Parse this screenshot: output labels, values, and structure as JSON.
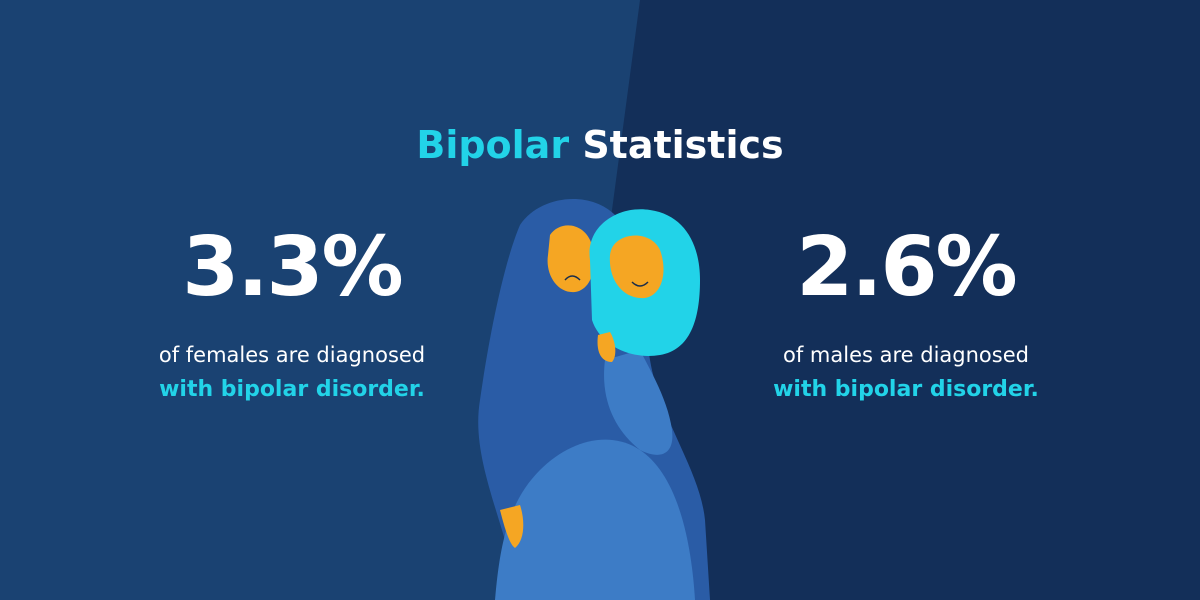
{
  "title": {
    "highlight": "Bipolar",
    "rest": "Statistics"
  },
  "stats": [
    {
      "value": "3.3%",
      "line1": "of females are diagnosed",
      "line2": "with bipolar disorder."
    },
    {
      "value": "2.6%",
      "line1": "of males are diagnosed",
      "line2": "with bipolar disorder."
    }
  ]
}
